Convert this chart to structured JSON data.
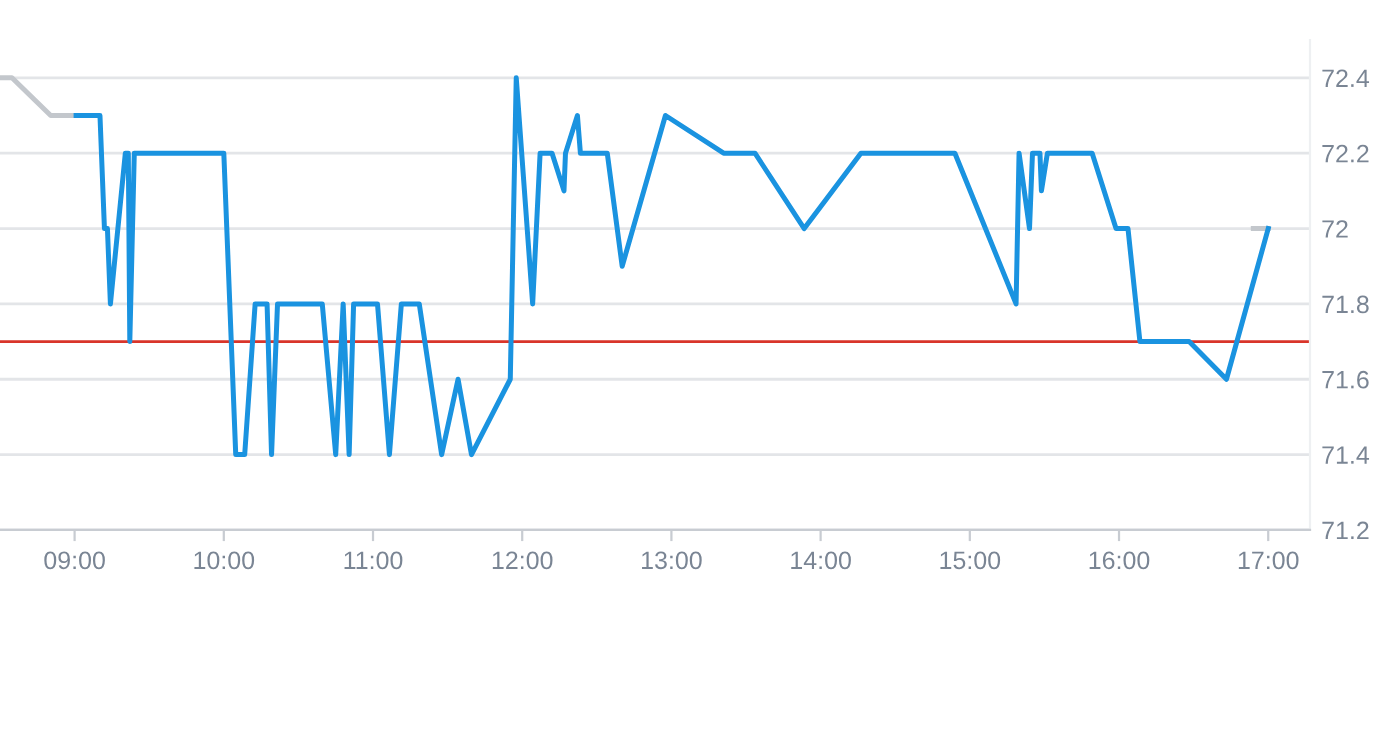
{
  "chart_data": {
    "type": "line",
    "series": [
      {
        "color": "#c3c7cc",
        "x": [
          8.51,
          8.58,
          8.84,
          9.01,
          null,
          16.9,
          17.0
        ],
        "values": [
          72.4,
          72.4,
          72.3,
          72.3,
          null,
          72.0,
          72.0
        ]
      },
      {
        "color": "#1a93e0",
        "x": [
          9.01,
          9.17,
          9.2,
          9.22,
          9.24,
          9.34,
          9.36,
          9.37,
          9.4,
          10.0,
          10.08,
          10.14,
          10.21,
          10.29,
          10.32,
          10.36,
          10.66,
          10.75,
          10.8,
          10.84,
          10.87,
          11.03,
          11.11,
          11.19,
          11.31,
          11.46,
          11.57,
          11.66,
          11.92,
          11.96,
          12.07,
          12.12,
          12.2,
          12.28,
          12.29,
          12.37,
          12.39,
          12.57,
          12.67,
          12.96,
          13.35,
          13.56,
          13.89,
          14.27,
          14.9,
          15.31,
          15.33,
          15.4,
          15.42,
          15.47,
          15.48,
          15.52,
          15.82,
          15.98,
          16.06,
          16.14,
          16.47,
          16.72,
          17.0
        ],
        "values": [
          72.3,
          72.3,
          72.0,
          72.0,
          71.8,
          72.2,
          72.2,
          71.7,
          72.2,
          72.2,
          71.4,
          71.4,
          71.8,
          71.8,
          71.4,
          71.8,
          71.8,
          71.4,
          71.8,
          71.4,
          71.8,
          71.8,
          71.4,
          71.8,
          71.8,
          71.4,
          71.6,
          71.4,
          71.6,
          72.4,
          71.8,
          72.2,
          72.2,
          72.1,
          72.2,
          72.3,
          72.2,
          72.2,
          71.9,
          72.3,
          72.2,
          72.2,
          72.0,
          72.2,
          72.2,
          71.8,
          72.2,
          72.0,
          72.2,
          72.2,
          72.1,
          72.2,
          72.2,
          72.0,
          72.0,
          71.7,
          71.7,
          71.6,
          72.0
        ]
      }
    ],
    "xlim": [
      8.5,
      17.28
    ],
    "xticks": [
      {
        "value": 9,
        "label": "09:00"
      },
      {
        "value": 10,
        "label": "10:00"
      },
      {
        "value": 11,
        "label": "11:00"
      },
      {
        "value": 12,
        "label": "12:00"
      },
      {
        "value": 13,
        "label": "13:00"
      },
      {
        "value": 14,
        "label": "14:00"
      },
      {
        "value": 15,
        "label": "15:00"
      },
      {
        "value": 16,
        "label": "16:00"
      },
      {
        "value": 17,
        "label": "17:00"
      }
    ],
    "ylim": [
      71.2,
      72.5
    ],
    "yticks": [
      71.2,
      71.4,
      71.6,
      71.8,
      72,
      72.2,
      72.4
    ],
    "ref_lines": [
      {
        "axis": "y",
        "value": 71.7,
        "color": "#d9352a"
      }
    ],
    "grid": "y",
    "line_style": "solid",
    "marker": "none"
  }
}
